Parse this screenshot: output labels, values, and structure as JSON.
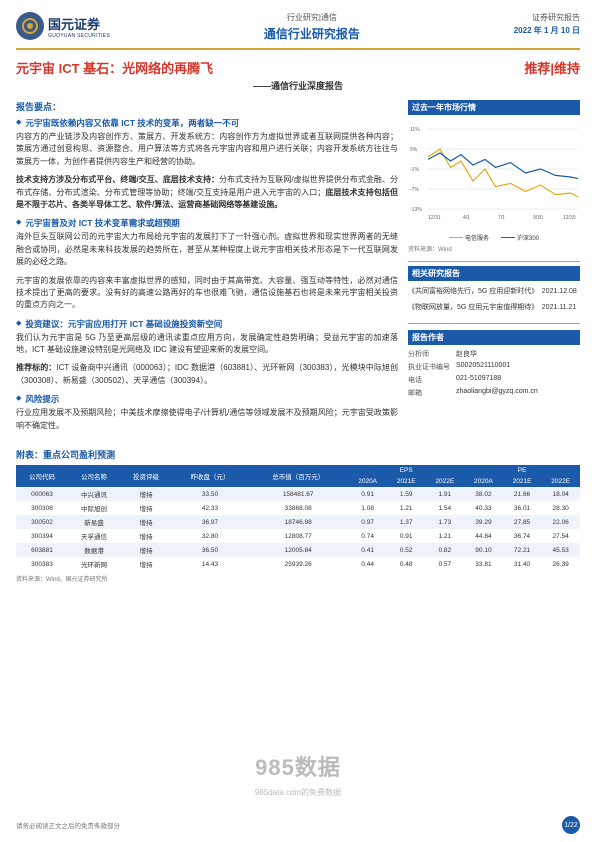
{
  "header": {
    "tag": "行业研究|通信",
    "title": "通信行业研究报告",
    "right_tag": "证券研究报告",
    "date": "2022 年 1 月 10 日",
    "logo_cn": "国元证券",
    "logo_en": "GUOYUAN SECURITIES"
  },
  "title": {
    "main": "元宇宙 ICT 基石：光网络的再腾飞",
    "rating": "推荐|维持",
    "sub": "——通信行业深度报告"
  },
  "body": {
    "sec_label": "报告要点：",
    "b1_title": "元宇宙既依赖内容又依靠 ICT 技术的变革，两者缺一不可",
    "b1_text": "内容方的产业链涉及内容创作方、策展方、开发系统方：内容创作方为虚拟世界或者互联网提供各种内容；策展方通过创意构思、资源整合、用户算法等方式将各元宇宙内容和用户进行关联；内容开发系统方往往与策展方一体，为创作者提供内容生产和经营的协助。",
    "b1_text2": "技术支持方涉及分布式平台、终端/交互、底层技术支持：分布式支持为互联网/虚拟世界提供分布式金融、分布式存储、分布式渲染、分布式管理等协助；终端/交互支持是用户进入元宇宙的入口；底层技术支持包括但是不限于芯片、各类半导体工艺、软件/算法、运营商基础网络等基建设施。",
    "b2_title": "元宇宙普及对 ICT 技术变革需求或超预期",
    "b2_text": "海外巨头互联网公司的元宇宙大力布局给元宇宙的发展打下了一针强心剂。虚拟世界和现实世界两者的无缝融合或协同，必然是未来科技发展的趋势所在，甚至从某种程度上说元宇宙相关技术形态是下一代互联网发展的必经之路。",
    "b2_text2": "元宇宙的发展依靠的内容来丰富虚拟世界的感知，同时由于其高带宽、大容量、强互动等特性，必然对通信技术提出了更高的要求。没有好的高速公路再好的车也很难飞驰，通信设施基石也将是未来元宇宙相关投资的重点方向之一。",
    "b3_title": "投资建议：元宇宙应用打开 ICT 基础设施投资新空间",
    "b3_text": "我们认为元宇宙是 5G 乃至更高层级的通讯读重点应用方向，发展确定性趋势明确；受益元宇宙的加速落地，ICT 基础设施建设特别是光网络及 IDC 建设有望迎来新的发展空间。",
    "b3_text2": "推荐标的：ICT 设备商中兴通讯（000063）；IDC 数据港（603881）、光环新网（300383），光模块中际旭创（300308）、新易盛（300502）、天孚通信（300394）。",
    "b4_title": "风险提示",
    "b4_text": "行业应用发展不及预期风险；中美技术摩擦使得电子/计算机/通信等领域发展不及预期风险；元宇宙受政策影响不确定性。"
  },
  "sidebar": {
    "market_header": "过去一年市场行情",
    "chart": {
      "ylabels": [
        "11%",
        "5%",
        "-1%",
        "-7%",
        "-13%"
      ],
      "xlabels": [
        "12/31",
        "4/1",
        "7/1",
        "9/30",
        "12/30"
      ],
      "series1": {
        "name": "电信服务",
        "color": "#e8a816",
        "points": [
          [
            0,
            35
          ],
          [
            8,
            25
          ],
          [
            15,
            48
          ],
          [
            22,
            40
          ],
          [
            30,
            65
          ],
          [
            38,
            50
          ],
          [
            45,
            72
          ],
          [
            55,
            68
          ],
          [
            65,
            78
          ],
          [
            75,
            70
          ],
          [
            85,
            82
          ],
          [
            95,
            80
          ],
          [
            100,
            85
          ]
        ]
      },
      "series2": {
        "name": "沪深300",
        "color": "#1a5aa8",
        "points": [
          [
            0,
            38
          ],
          [
            8,
            30
          ],
          [
            15,
            40
          ],
          [
            22,
            32
          ],
          [
            30,
            45
          ],
          [
            38,
            38
          ],
          [
            45,
            48
          ],
          [
            55,
            42
          ],
          [
            65,
            55
          ],
          [
            75,
            50
          ],
          [
            85,
            58
          ],
          [
            95,
            60
          ],
          [
            100,
            62
          ]
        ]
      }
    },
    "source": "资料来源：Wind",
    "related_header": "相关研究报告",
    "related": [
      {
        "t": "《共同富裕网络先行，5G 应用迎新时代》",
        "d": "2021.12.08"
      },
      {
        "t": "《物联网放量，5G 应用元宇宙值得期待》",
        "d": "2021.11.21"
      }
    ],
    "author_header": "报告作者",
    "author": {
      "analyst_label": "分析师",
      "analyst": "赵良华",
      "cert_label": "执业证书编号",
      "cert": "S0020521110001",
      "tel_label": "电话",
      "tel": "021-51097188",
      "email_label": "邮箱",
      "email": "zhaoliangbi@gyzq.com.cn"
    }
  },
  "appendix": {
    "title": "附表：重点公司盈利预测",
    "headers": [
      "公司代码",
      "公司名称",
      "投资评级",
      "昨收盘\n（元）",
      "总市值\n（百万元）",
      "2020A",
      "2021E",
      "2022E",
      "2020A",
      "2021E",
      "2022E"
    ],
    "group_headers": [
      "",
      "",
      "",
      "",
      "",
      "EPS",
      "",
      "",
      "PE",
      "",
      ""
    ],
    "rows": [
      [
        "000063",
        "中兴通讯",
        "增持",
        "33.50",
        "158481.67",
        "0.91",
        "1.59",
        "1.91",
        "38.02",
        "21.66",
        "18.04"
      ],
      [
        "300308",
        "中际旭创",
        "增持",
        "42.33",
        "33868.08",
        "1.08",
        "1.21",
        "1.54",
        "40.33",
        "36.01",
        "28.30"
      ],
      [
        "300502",
        "新易盛",
        "增持",
        "36.97",
        "18746.98",
        "0.97",
        "1.37",
        "1.73",
        "39.29",
        "27.85",
        "22.06"
      ],
      [
        "300394",
        "天孚通信",
        "增持",
        "32.80",
        "12808.77",
        "0.74",
        "0.91",
        "1.21",
        "44.84",
        "36.74",
        "27.54"
      ],
      [
        "603881",
        "数据港",
        "增持",
        "36.50",
        "12005.84",
        "0.41",
        "0.52",
        "0.82",
        "90.10",
        "72.21",
        "45.53"
      ],
      [
        "300383",
        "光环新网",
        "增持",
        "14.43",
        "25939.26",
        "0.44",
        "0.48",
        "0.57",
        "33.81",
        "31.40",
        "26.39"
      ]
    ],
    "source": "资料来源：Wind，国元证券研究所"
  },
  "watermark": {
    "main": "985数据",
    "sub": "985data.com的免费数据"
  },
  "footer": {
    "left": "请务必阅读正文之后的免责条款部分",
    "page": "1/22"
  }
}
